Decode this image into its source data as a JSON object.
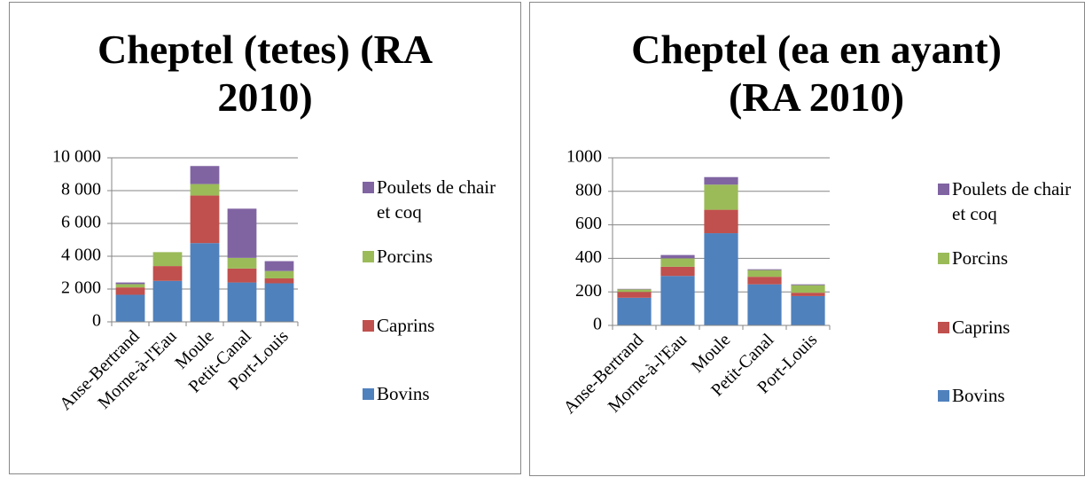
{
  "chart_data": [
    {
      "type": "bar",
      "stacked": true,
      "title": "Cheptel (tetes) (RA 2010)",
      "categories": [
        "Anse-Bertrand",
        "Morne-à-l'Eau",
        "Moule",
        "Petit-Canal",
        "Port-Louis"
      ],
      "series": [
        {
          "name": "Bovins",
          "color": "#4f81bd",
          "values": [
            1650,
            2500,
            4800,
            2400,
            2350
          ]
        },
        {
          "name": "Caprins",
          "color": "#c0504d",
          "values": [
            450,
            900,
            2900,
            850,
            300
          ]
        },
        {
          "name": "Porcins",
          "color": "#9bbb59",
          "values": [
            200,
            850,
            700,
            650,
            450
          ]
        },
        {
          "name": "Poulets de chair et coq",
          "color": "#8064a2",
          "values": [
            100,
            0,
            1100,
            3000,
            600
          ]
        }
      ],
      "ylim": [
        0,
        10000
      ],
      "yticks": [
        0,
        {
          "value": 2000,
          "label": "2 000"
        },
        {
          "value": 4000,
          "label": "4 000"
        },
        {
          "value": 6000,
          "label": "6 000"
        },
        {
          "value": 8000,
          "label": "8 000"
        },
        {
          "value": 10000,
          "label": "10 000"
        }
      ],
      "grid": true,
      "legend": "right"
    },
    {
      "type": "bar",
      "stacked": true,
      "title": "Cheptel (ea en ayant) (RA 2010)",
      "categories": [
        "Anse-Bertrand",
        "Morne-à-l'Eau",
        "Moule",
        "Petit-Canal",
        "Port-Louis"
      ],
      "series": [
        {
          "name": "Bovins",
          "color": "#4f81bd",
          "values": [
            165,
            295,
            550,
            245,
            175
          ]
        },
        {
          "name": "Caprins",
          "color": "#c0504d",
          "values": [
            35,
            55,
            140,
            45,
            20
          ]
        },
        {
          "name": "Porcins",
          "color": "#9bbb59",
          "values": [
            15,
            50,
            150,
            40,
            45
          ]
        },
        {
          "name": "Poulets de chair et coq",
          "color": "#8064a2",
          "values": [
            3,
            20,
            45,
            5,
            5
          ]
        }
      ],
      "ylim": [
        0,
        1000
      ],
      "yticks": [
        0,
        200,
        400,
        600,
        800,
        1000
      ],
      "grid": true,
      "legend": "right"
    }
  ]
}
